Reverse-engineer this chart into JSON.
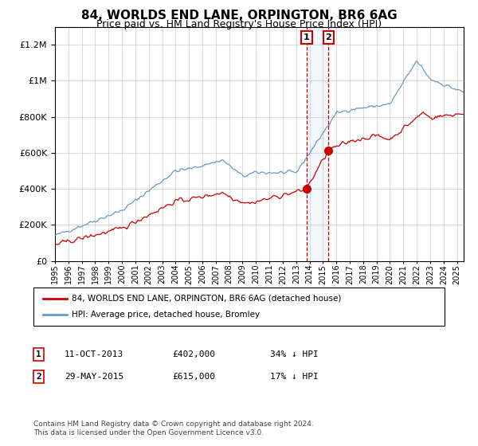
{
  "title": "84, WORLDS END LANE, ORPINGTON, BR6 6AG",
  "subtitle": "Price paid vs. HM Land Registry's House Price Index (HPI)",
  "legend_label_red": "84, WORLDS END LANE, ORPINGTON, BR6 6AG (detached house)",
  "legend_label_blue": "HPI: Average price, detached house, Bromley",
  "annotation1_label": "1",
  "annotation1_date": "11-OCT-2013",
  "annotation1_price": "£402,000",
  "annotation1_hpi": "34% ↓ HPI",
  "annotation1_year": 2013.78,
  "annotation1_value": 402000,
  "annotation2_label": "2",
  "annotation2_date": "29-MAY-2015",
  "annotation2_price": "£615,000",
  "annotation2_hpi": "17% ↓ HPI",
  "annotation2_year": 2015.41,
  "annotation2_value": 615000,
  "copyright": "Contains HM Land Registry data © Crown copyright and database right 2024.\nThis data is licensed under the Open Government Licence v3.0.",
  "ylim": [
    0,
    1300000
  ],
  "xlim_start": 1995.0,
  "xlim_end": 2025.5,
  "red_color": "#cc0000",
  "blue_color": "#6699cc",
  "background_color": "#ffffff",
  "grid_color": "#cccccc"
}
